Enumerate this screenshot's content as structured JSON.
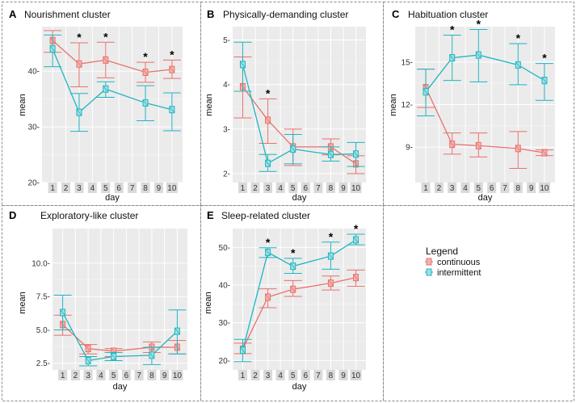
{
  "legend": {
    "title": "Legend",
    "items": [
      {
        "label": "continuous",
        "color": "#e8716b"
      },
      {
        "label": "intermittent",
        "color": "#1fb5c0"
      }
    ]
  },
  "chart_data": [
    {
      "type": "line",
      "letter": "A",
      "title": "Nourishment cluster",
      "xlabel": "day",
      "ylabel": "mean",
      "x": [
        1,
        3,
        5,
        8,
        10
      ],
      "xticks": [
        "1",
        "2",
        "3",
        "4",
        "5",
        "6",
        "7",
        "8",
        "9",
        "10"
      ],
      "ylim": [
        20,
        48
      ],
      "yticks": [
        20,
        30,
        40
      ],
      "ytick_labels": [
        "20-",
        "30-",
        "40-"
      ],
      "series": [
        {
          "name": "continuous",
          "values": [
            45.5,
            41.3,
            42.0,
            39.8,
            40.3
          ],
          "err_low": [
            43.4,
            37.2,
            38.8,
            38.0,
            38.7
          ],
          "err_high": [
            47.3,
            45.1,
            45.2,
            41.6,
            42.0
          ]
        },
        {
          "name": "intermittent",
          "values": [
            44.0,
            32.6,
            36.8,
            34.3,
            33.1
          ],
          "err_low": [
            40.8,
            29.2,
            35.3,
            31.1,
            29.3
          ],
          "err_high": [
            46.5,
            36.0,
            38.1,
            37.4,
            36.1
          ]
        }
      ],
      "stars": [
        3,
        5,
        8,
        10
      ],
      "star_text": "*"
    },
    {
      "type": "line",
      "letter": "B",
      "title": "Physically-demanding cluster",
      "xlabel": "day",
      "ylabel": "mean",
      "x": [
        1,
        3,
        5,
        8,
        10
      ],
      "xticks": [
        "1",
        "2",
        "3",
        "4",
        "5",
        "6",
        "7",
        "8",
        "9",
        "10"
      ],
      "ylim": [
        1.8,
        5.3
      ],
      "yticks": [
        2,
        3,
        4,
        5
      ],
      "ytick_labels": [
        "2-",
        "3-",
        "4-",
        "5-"
      ],
      "series": [
        {
          "name": "continuous",
          "values": [
            3.95,
            3.2,
            2.6,
            2.6,
            2.22
          ],
          "err_low": [
            3.25,
            2.68,
            2.18,
            2.42,
            2.0
          ],
          "err_high": [
            4.62,
            3.68,
            3.0,
            2.78,
            2.4
          ]
        },
        {
          "name": "intermittent",
          "values": [
            4.45,
            2.23,
            2.55,
            2.43,
            2.44
          ],
          "err_low": [
            3.85,
            2.05,
            2.22,
            2.28,
            2.16
          ],
          "err_high": [
            4.95,
            2.43,
            2.88,
            2.6,
            2.7
          ]
        }
      ],
      "stars": [
        3
      ],
      "star_text": "*"
    },
    {
      "type": "line",
      "letter": "C",
      "title": "Habituation cluster",
      "xlabel": "day",
      "ylabel": "mean",
      "x": [
        1,
        3,
        5,
        8,
        10
      ],
      "xticks": [
        "1",
        "2",
        "3",
        "4",
        "5",
        "6",
        "7",
        "8",
        "9",
        "10"
      ],
      "ylim": [
        6.5,
        17.5
      ],
      "yticks": [
        9,
        12,
        15
      ],
      "ytick_labels": [
        "9-",
        "12-",
        "15-"
      ],
      "series": [
        {
          "name": "continuous",
          "values": [
            13.2,
            9.2,
            9.1,
            8.9,
            8.6
          ],
          "err_low": [
            11.8,
            8.5,
            8.3,
            7.5,
            8.4
          ],
          "err_high": [
            14.5,
            10.0,
            10.0,
            10.1,
            8.8
          ]
        },
        {
          "name": "intermittent",
          "values": [
            12.9,
            15.3,
            15.5,
            14.8,
            13.7
          ],
          "err_low": [
            11.2,
            13.7,
            13.6,
            13.4,
            12.3
          ],
          "err_high": [
            14.5,
            16.9,
            17.3,
            16.3,
            14.9
          ]
        }
      ],
      "stars": [
        3,
        5,
        8,
        10
      ],
      "star_text": "*"
    },
    {
      "type": "line",
      "letter": "D",
      "title": "Exploratory-like cluster",
      "xlabel": "day",
      "ylabel": "mean",
      "x": [
        1,
        3,
        5,
        8,
        10
      ],
      "xticks": [
        "1",
        "2",
        "3",
        "4",
        "5",
        "6",
        "7",
        "8",
        "9",
        "10"
      ],
      "ylim": [
        2.0,
        12.6
      ],
      "yticks": [
        2.5,
        5.0,
        7.5,
        10.0
      ],
      "ytick_labels": [
        "2.5-",
        "5.0-",
        "7.5-",
        "10.0-"
      ],
      "series": [
        {
          "name": "continuous",
          "values": [
            5.4,
            3.6,
            3.4,
            3.7,
            3.7
          ],
          "err_low": [
            4.6,
            3.2,
            3.0,
            3.3,
            3.2
          ],
          "err_high": [
            6.1,
            3.9,
            3.6,
            4.1,
            4.2
          ]
        },
        {
          "name": "intermittent",
          "values": [
            6.3,
            2.7,
            3.0,
            3.1,
            4.9
          ],
          "err_low": [
            5.0,
            2.3,
            2.7,
            2.4,
            3.2
          ],
          "err_high": [
            7.6,
            3.0,
            3.3,
            3.7,
            6.5
          ]
        }
      ],
      "stars": [],
      "star_text": "*"
    },
    {
      "type": "line",
      "letter": "E",
      "title": "Sleep-related cluster",
      "xlabel": "day",
      "ylabel": "mean",
      "x": [
        1,
        3,
        5,
        8,
        10
      ],
      "xticks": [
        "1",
        "2",
        "3",
        "4",
        "5",
        "6",
        "7",
        "8",
        "9",
        "10"
      ],
      "ylim": [
        17.5,
        55
      ],
      "yticks": [
        20,
        30,
        40,
        50
      ],
      "ytick_labels": [
        "20-",
        "30-",
        "40-",
        "50-"
      ],
      "series": [
        {
          "name": "continuous",
          "values": [
            23.0,
            36.8,
            38.9,
            40.5,
            42.0
          ],
          "err_low": [
            21.8,
            34.0,
            37.0,
            38.7,
            39.7
          ],
          "err_high": [
            24.6,
            39.0,
            41.2,
            42.4,
            44.0
          ]
        },
        {
          "name": "intermittent",
          "values": [
            22.7,
            48.7,
            45.0,
            47.7,
            52.0
          ],
          "err_low": [
            19.7,
            47.3,
            43.1,
            44.2,
            50.7
          ],
          "err_high": [
            25.6,
            49.9,
            47.1,
            51.4,
            53.5
          ]
        }
      ],
      "stars": [
        3,
        5,
        8,
        10
      ],
      "star_text": "*"
    }
  ]
}
